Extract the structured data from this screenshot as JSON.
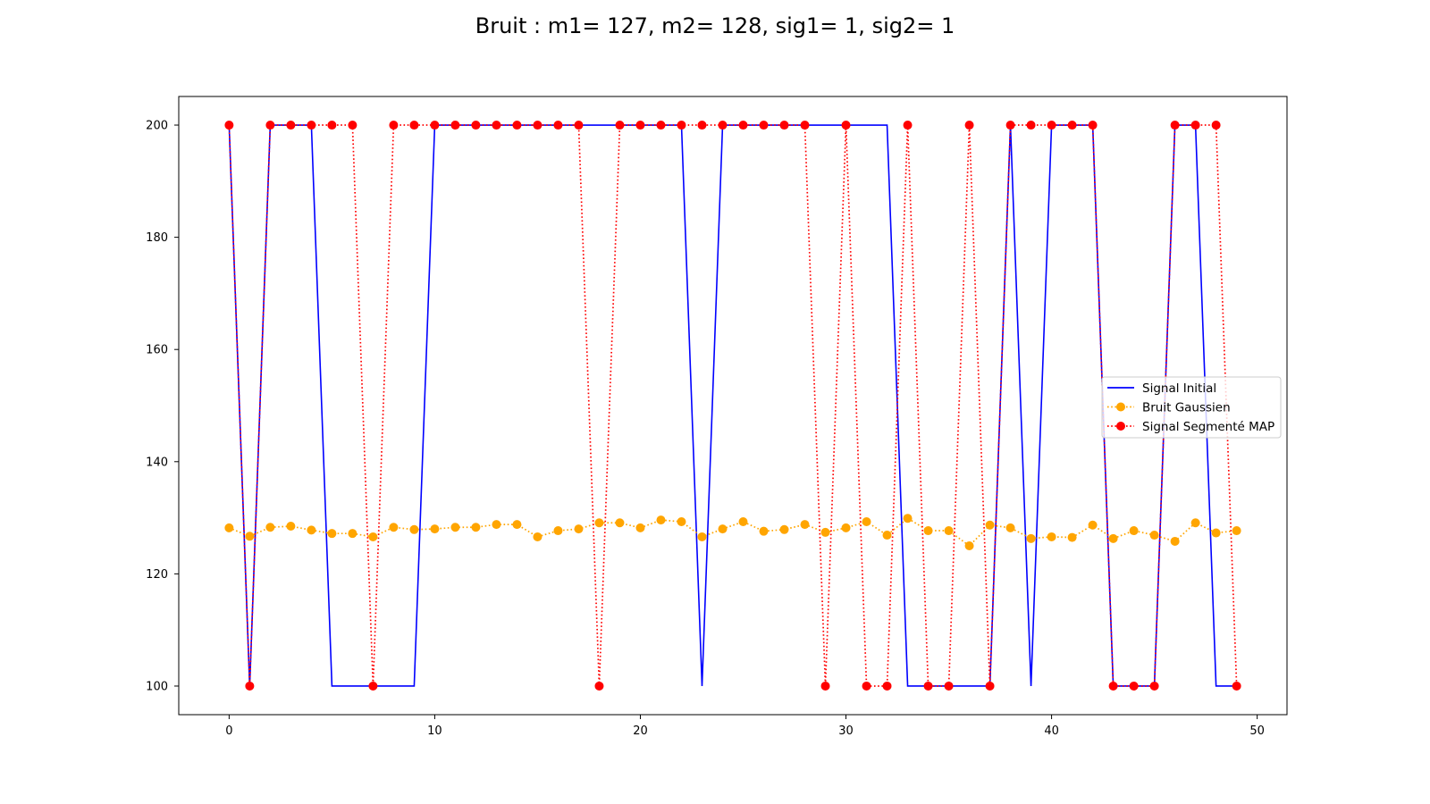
{
  "chart_data": {
    "type": "line",
    "title": "Bruit : m1= 127, m2= 128, sig1= 1, sig2= 1",
    "xlabel": "",
    "ylabel": "",
    "xlim": [
      -2.45,
      51.45
    ],
    "ylim": [
      94.9,
      205.1
    ],
    "xticks": [
      0,
      10,
      20,
      30,
      40,
      50
    ],
    "yticks": [
      100,
      120,
      140,
      160,
      180,
      200
    ],
    "grid": false,
    "legend_position": "center-right",
    "x": [
      0,
      1,
      2,
      3,
      4,
      5,
      6,
      7,
      8,
      9,
      10,
      11,
      12,
      13,
      14,
      15,
      16,
      17,
      18,
      19,
      20,
      21,
      22,
      23,
      24,
      25,
      26,
      27,
      28,
      29,
      30,
      31,
      32,
      33,
      34,
      35,
      36,
      37,
      38,
      39,
      40,
      41,
      42,
      43,
      44,
      45,
      46,
      47,
      48,
      49
    ],
    "series": [
      {
        "name": "Signal Initial",
        "style": "solid",
        "color": "#0000ff",
        "marker": false,
        "values": [
          200,
          100,
          200,
          200,
          200,
          100,
          100,
          100,
          100,
          100,
          200,
          200,
          200,
          200,
          200,
          200,
          200,
          200,
          200,
          200,
          200,
          200,
          200,
          100,
          200,
          200,
          200,
          200,
          200,
          200,
          200,
          200,
          200,
          100,
          100,
          100,
          100,
          100,
          200,
          100,
          200,
          200,
          200,
          100,
          100,
          100,
          200,
          200,
          100,
          100
        ]
      },
      {
        "name": "Bruit Gaussien",
        "style": "dotted",
        "color": "#ffa500",
        "marker": true,
        "values": [
          128.2,
          126.7,
          128.3,
          128.5,
          127.8,
          127.2,
          127.2,
          126.6,
          128.3,
          127.9,
          128.0,
          128.3,
          128.3,
          128.8,
          128.8,
          126.6,
          127.7,
          128.0,
          129.1,
          129.1,
          128.2,
          129.6,
          129.3,
          126.6,
          128.0,
          129.3,
          127.6,
          127.9,
          128.8,
          127.4,
          128.2,
          129.3,
          126.9,
          129.9,
          127.7,
          127.7,
          125.0,
          128.7,
          128.2,
          126.3,
          126.6,
          126.5,
          128.7,
          126.3,
          127.7,
          126.9,
          125.8,
          129.1,
          127.3,
          127.7
        ]
      },
      {
        "name": "Signal Segmenté MAP",
        "style": "dotted",
        "color": "#ff0000",
        "marker": true,
        "values": [
          200,
          100,
          200,
          200,
          200,
          200,
          200,
          100,
          200,
          200,
          200,
          200,
          200,
          200,
          200,
          200,
          200,
          200,
          100,
          200,
          200,
          200,
          200,
          200,
          200,
          200,
          200,
          200,
          200,
          100,
          200,
          100,
          100,
          200,
          100,
          100,
          200,
          100,
          200,
          200,
          200,
          200,
          200,
          100,
          100,
          100,
          200,
          200,
          200,
          100
        ]
      }
    ]
  }
}
